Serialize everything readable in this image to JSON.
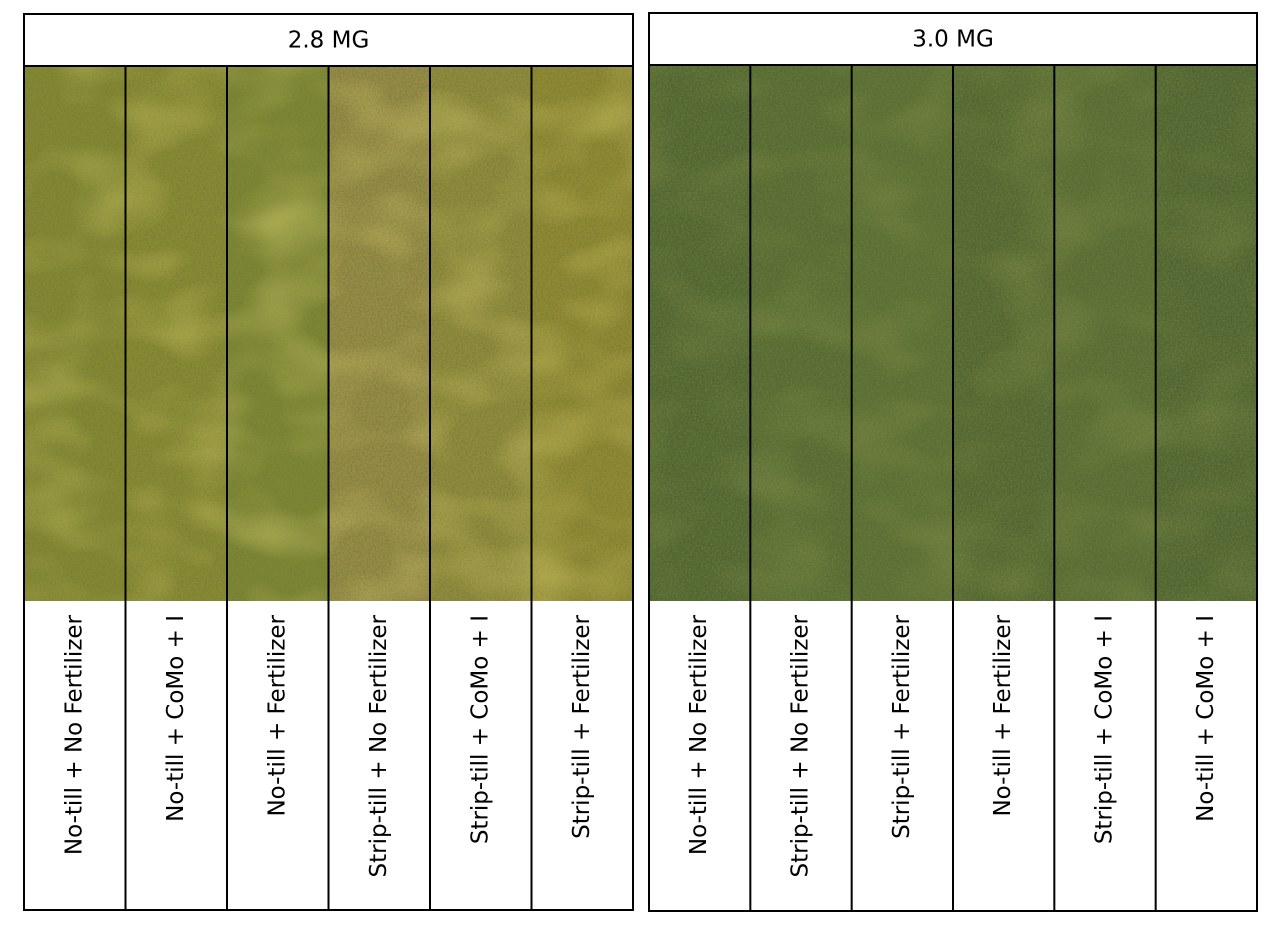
{
  "panels": [
    {
      "title": "2.8 MG",
      "plots": [
        "No-till + No Fertilizer",
        "No-till + CoMo + I",
        "No-till + Fertilizer",
        "Strip-till + No Fertilizer",
        "Strip-till + CoMo + I",
        "Strip-till + Fertilizer"
      ]
    },
    {
      "title": "3.0 MG",
      "plots": [
        "No-till + No Fertilizer",
        "Strip-till + No Fertilizer",
        "Strip-till + Fertilizer",
        "No-till + Fertilizer",
        "Strip-till + CoMo + I",
        "No-till + CoMo + I"
      ]
    }
  ]
}
